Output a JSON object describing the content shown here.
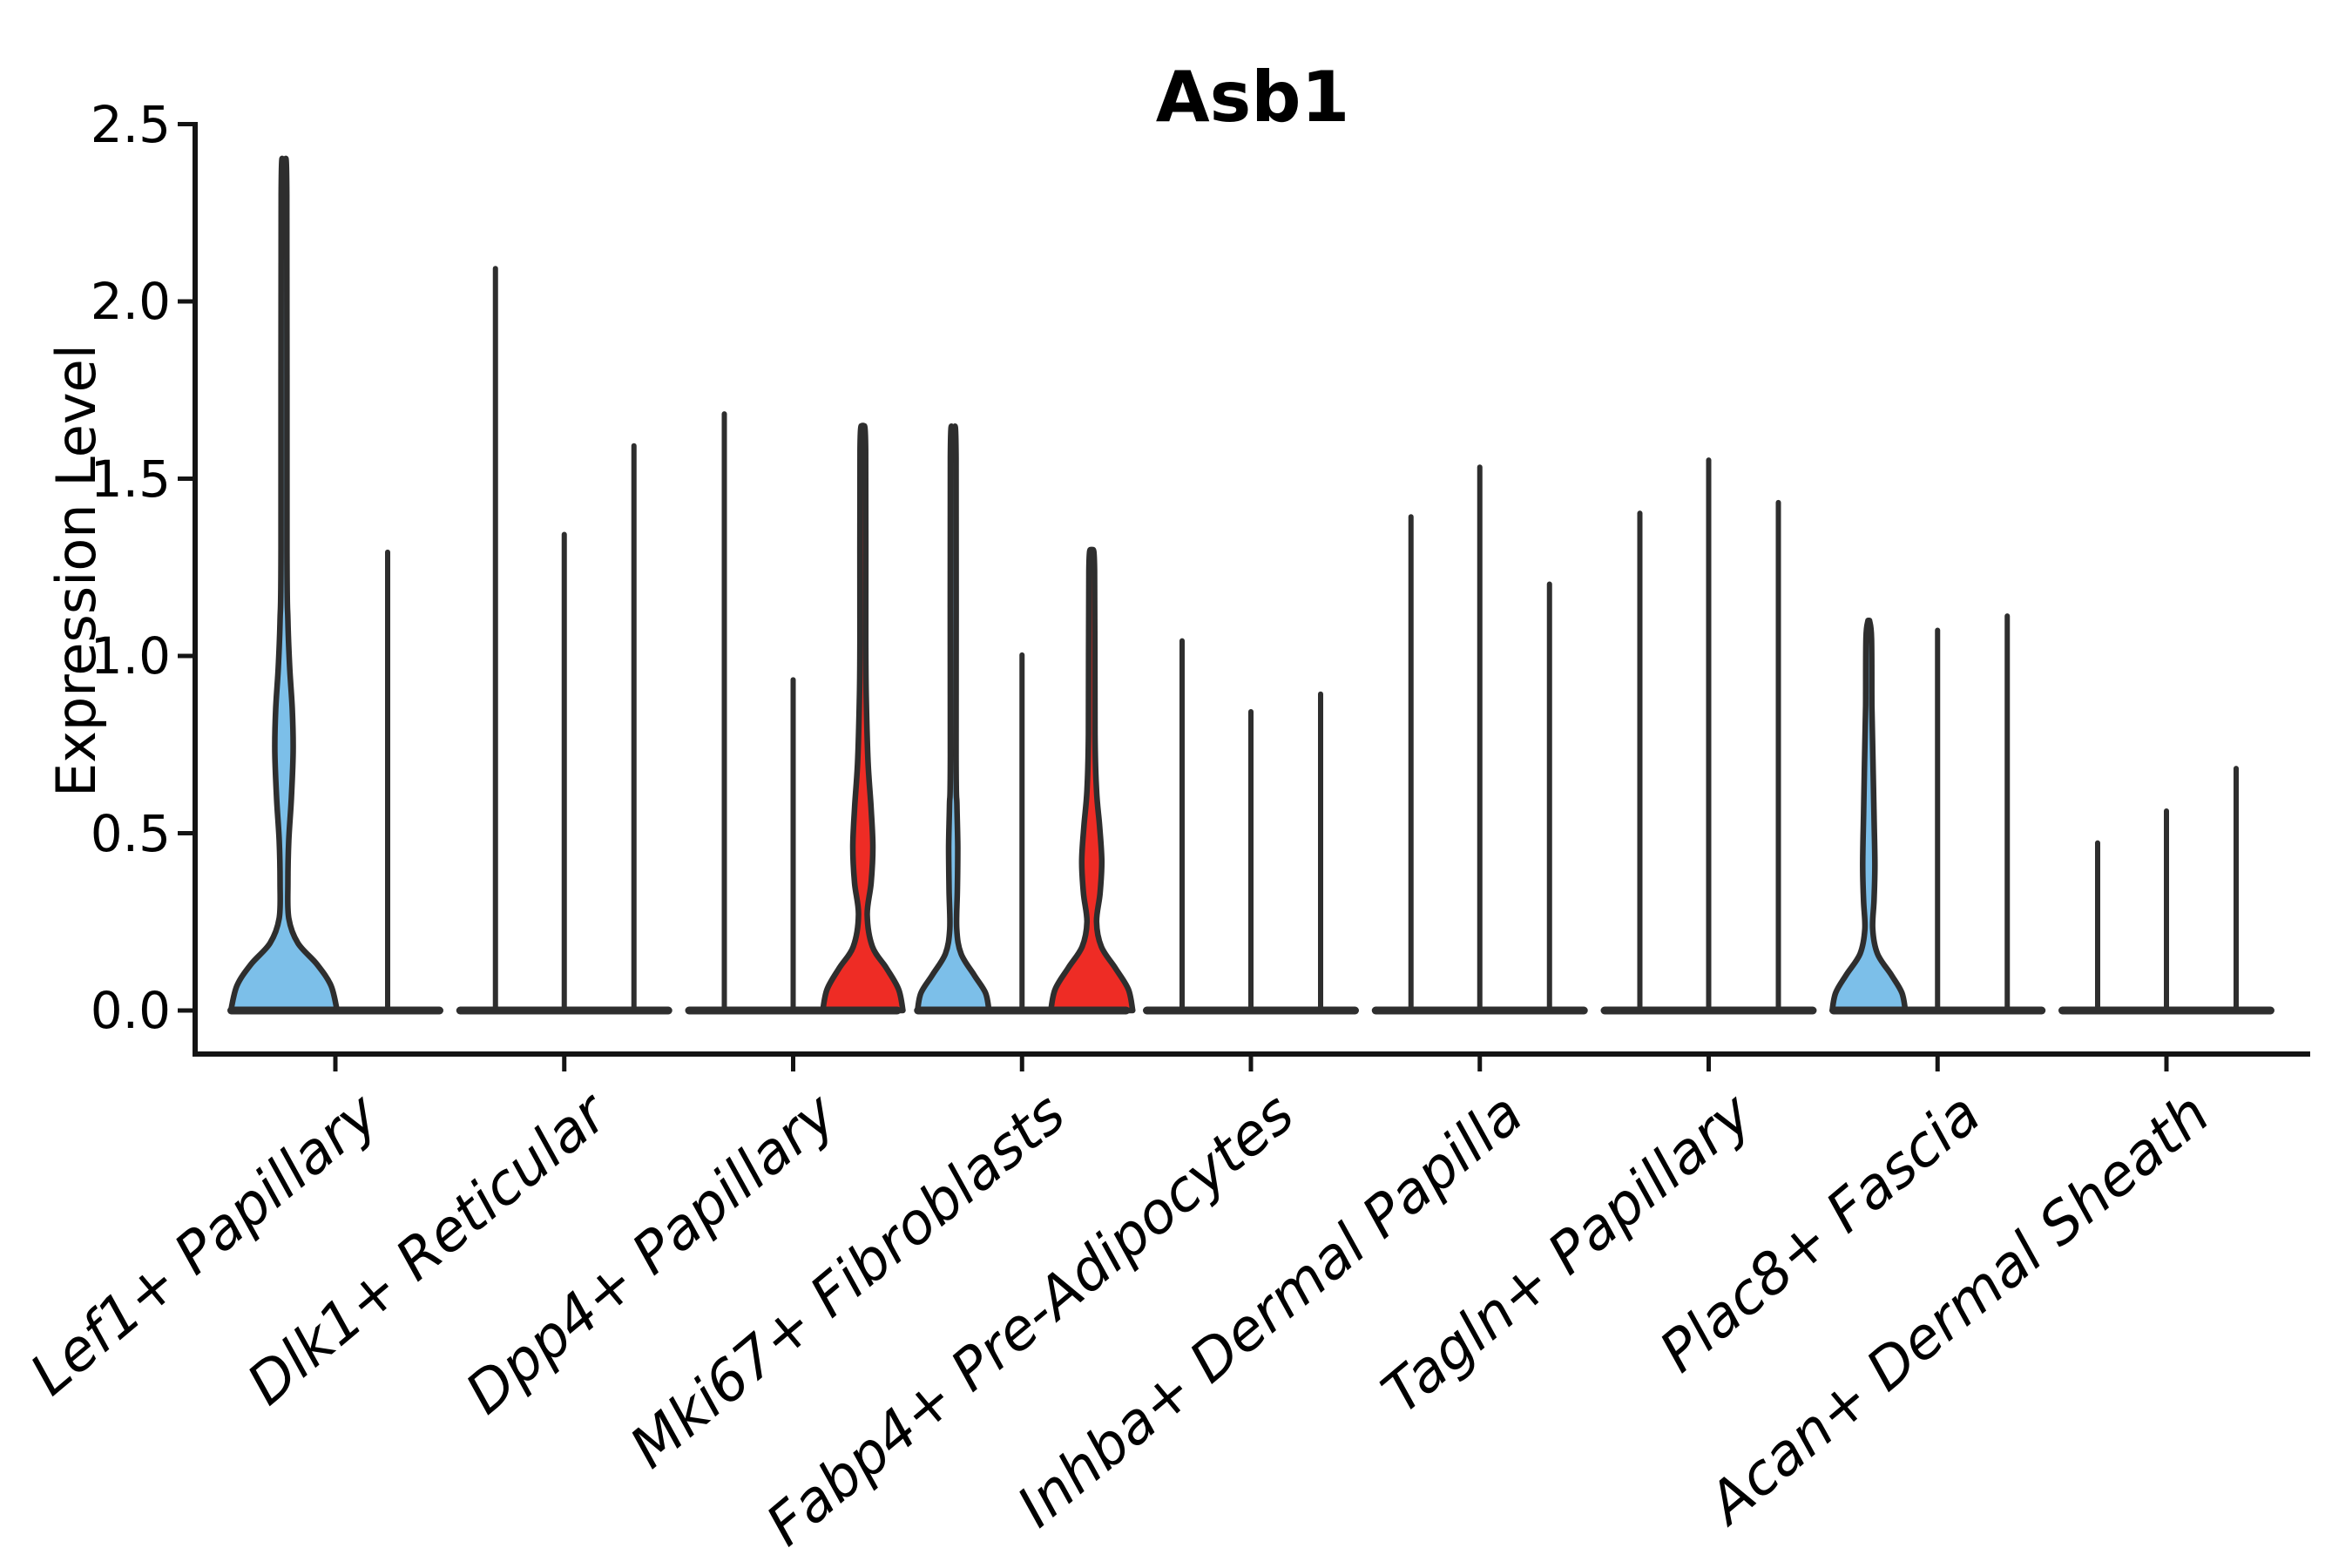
{
  "title": "Asb1",
  "y_axis": {
    "label": "Expression Level",
    "ticks_top_to_bottom": [
      "2.5",
      "2.0",
      "1.5",
      "1.0",
      "0.5",
      "0.0"
    ],
    "range": [
      0.0,
      2.5
    ]
  },
  "colors": {
    "blue_fill": "#7CBFE9",
    "red_fill": "#EE2C25",
    "violin_outline": "#2E2E2E",
    "axis_line": "#141414",
    "text": "#000000",
    "background": "#FFFFFF"
  },
  "chart_data": {
    "type": "violin",
    "title": "Asb1",
    "xlabel": "",
    "ylabel": "Expression Level",
    "ylim": [
      0.0,
      2.5
    ],
    "yticks": [
      0.0,
      0.5,
      1.0,
      1.5,
      2.0,
      2.5
    ],
    "grid": false,
    "legend": null,
    "categories": [
      "Lef1+ Papillary",
      "Dlk1+ Reticular",
      "Dpp4+ Papillary",
      "Mki67+ Fibroblasts",
      "Fabp4+ Pre-Adipocytes",
      "Inhba+ Dermal Papilla",
      "Tagln+ Papillary",
      "Plac8+ Fascia",
      "Acan+ Dermal Sheath"
    ],
    "groups": [
      {
        "category": "Lef1+ Papillary",
        "violins": [
          {
            "x_offset": -59,
            "max_expression": 2.38,
            "fill": "blue",
            "profile": [
              [
                0,
                61
              ],
              [
                0.07,
                54
              ],
              [
                0.13,
                38
              ],
              [
                0.19,
                16
              ],
              [
                0.26,
                5.5
              ],
              [
                0.36,
                4.5
              ],
              [
                0.48,
                5.5
              ],
              [
                0.6,
                8.5
              ],
              [
                0.73,
                10.5
              ],
              [
                0.85,
                9.5
              ],
              [
                0.97,
                6.5
              ],
              [
                1.1,
                4.5
              ],
              [
                1.3,
                3.4
              ],
              [
                2.3,
                3.2
              ],
              [
                2.38,
                0.8
              ]
            ]
          },
          {
            "x_offset": 60,
            "max_expression": 1.3,
            "fill": null,
            "profile": null
          }
        ]
      },
      {
        "category": "Dlk1+ Reticular",
        "violins": [
          {
            "x_offset": -79,
            "max_expression": 2.1,
            "fill": null,
            "profile": null
          },
          {
            "x_offset": 0,
            "max_expression": 1.35,
            "fill": null,
            "profile": null
          },
          {
            "x_offset": 80,
            "max_expression": 1.6,
            "fill": null,
            "profile": null
          }
        ]
      },
      {
        "category": "Dpp4+ Papillary",
        "violins": [
          {
            "x_offset": -79,
            "max_expression": 1.69,
            "fill": null,
            "profile": null
          },
          {
            "x_offset": 0,
            "max_expression": 0.94,
            "fill": null,
            "profile": null
          },
          {
            "x_offset": 80,
            "max_expression": 1.65,
            "fill": "red",
            "profile": [
              [
                0,
                46
              ],
              [
                0.06,
                41
              ],
              [
                0.12,
                27
              ],
              [
                0.18,
                11
              ],
              [
                0.27,
                5
              ],
              [
                0.36,
                9.5
              ],
              [
                0.46,
                11.5
              ],
              [
                0.57,
                9.5
              ],
              [
                0.7,
                6
              ],
              [
                0.87,
                4
              ],
              [
                1.05,
                3.3
              ],
              [
                1.58,
                3.2
              ],
              [
                1.65,
                0.8
              ]
            ]
          }
        ]
      },
      {
        "category": "Mki67+ Fibroblasts",
        "violins": [
          {
            "x_offset": -79,
            "max_expression": 1.63,
            "fill": "blue",
            "profile": [
              [
                0,
                41
              ],
              [
                0.05,
                37
              ],
              [
                0.1,
                24
              ],
              [
                0.16,
                9
              ],
              [
                0.23,
                4
              ],
              [
                0.34,
                4.8
              ],
              [
                0.46,
                5.2
              ],
              [
                0.58,
                4.2
              ],
              [
                0.72,
                3.3
              ],
              [
                1.56,
                3.2
              ],
              [
                1.63,
                0.8
              ]
            ]
          },
          {
            "x_offset": 0,
            "max_expression": 1.01,
            "fill": null,
            "profile": null
          },
          {
            "x_offset": 80,
            "max_expression": 1.3,
            "fill": "red",
            "profile": [
              [
                0,
                47
              ],
              [
                0.06,
                42
              ],
              [
                0.12,
                27
              ],
              [
                0.18,
                11
              ],
              [
                0.25,
                5.5
              ],
              [
                0.33,
                9.5
              ],
              [
                0.42,
                11.5
              ],
              [
                0.52,
                9
              ],
              [
                0.62,
                5.5
              ],
              [
                0.78,
                3.8
              ],
              [
                1.24,
                3.2
              ],
              [
                1.3,
                0.8
              ]
            ]
          }
        ]
      },
      {
        "category": "Fabp4+ Pre-Adipocytes",
        "violins": [
          {
            "x_offset": -79,
            "max_expression": 1.05,
            "fill": null,
            "profile": null
          },
          {
            "x_offset": 0,
            "max_expression": 0.85,
            "fill": null,
            "profile": null
          },
          {
            "x_offset": 80,
            "max_expression": 0.9,
            "fill": null,
            "profile": null
          }
        ]
      },
      {
        "category": "Inhba+ Dermal Papilla",
        "violins": [
          {
            "x_offset": -79,
            "max_expression": 1.4,
            "fill": null,
            "profile": null
          },
          {
            "x_offset": 0,
            "max_expression": 1.54,
            "fill": null,
            "profile": null
          },
          {
            "x_offset": 80,
            "max_expression": 1.21,
            "fill": null,
            "profile": null
          }
        ]
      },
      {
        "category": "Tagln+ Papillary",
        "violins": [
          {
            "x_offset": -79,
            "max_expression": 1.41,
            "fill": null,
            "profile": null
          },
          {
            "x_offset": 0,
            "max_expression": 1.56,
            "fill": null,
            "profile": null
          },
          {
            "x_offset": 80,
            "max_expression": 1.44,
            "fill": null,
            "profile": null
          }
        ]
      },
      {
        "category": "Plac8+ Fascia",
        "violins": [
          {
            "x_offset": -79,
            "max_expression": 1.1,
            "fill": "blue",
            "profile": [
              [
                0,
                42
              ],
              [
                0.05,
                38
              ],
              [
                0.1,
                26
              ],
              [
                0.16,
                10
              ],
              [
                0.23,
                4.5
              ],
              [
                0.31,
                6
              ],
              [
                0.41,
                7
              ],
              [
                0.55,
                6
              ],
              [
                0.7,
                4.8
              ],
              [
                0.86,
                3.6
              ],
              [
                1.05,
                3.2
              ],
              [
                1.1,
                0.8
              ]
            ]
          },
          {
            "x_offset": 0,
            "max_expression": 1.08,
            "fill": null,
            "profile": null
          },
          {
            "x_offset": 80,
            "max_expression": 1.12,
            "fill": null,
            "profile": null
          }
        ]
      },
      {
        "category": "Acan+ Dermal Sheath",
        "violins": [
          {
            "x_offset": -79,
            "max_expression": 0.48,
            "fill": null,
            "profile": null
          },
          {
            "x_offset": 0,
            "max_expression": 0.57,
            "fill": null,
            "profile": null
          },
          {
            "x_offset": 80,
            "max_expression": 0.69,
            "fill": null,
            "profile": null
          }
        ]
      }
    ]
  }
}
